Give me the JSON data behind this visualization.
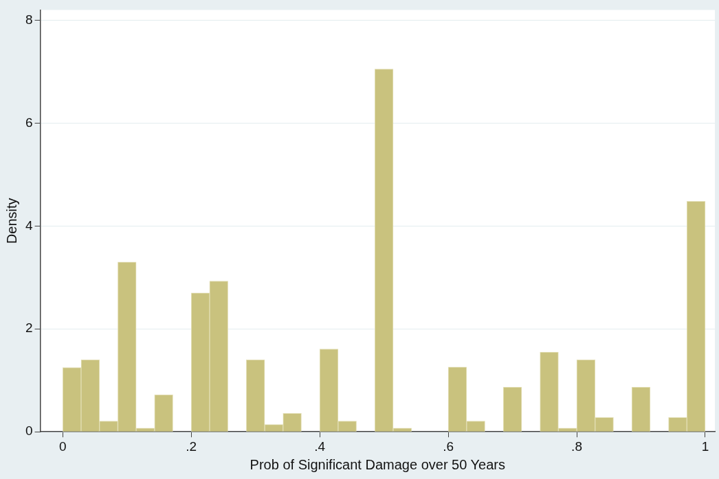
{
  "chart_data": {
    "type": "histogram",
    "xlabel": "Prob of Significant Damage over 50 Years",
    "ylabel": "Density",
    "bins": [
      0,
      0.0286,
      0.0571,
      0.0857,
      0.1143,
      0.1429,
      0.1714,
      0.2,
      0.2286,
      0.2571,
      0.2857,
      0.3143,
      0.3429,
      0.3714,
      0.4,
      0.4286,
      0.4571,
      0.4857,
      0.5143,
      0.5429,
      0.5714,
      0.6,
      0.6286,
      0.6571,
      0.6857,
      0.7143,
      0.7429,
      0.7714,
      0.8,
      0.8286,
      0.8571,
      0.8857,
      0.9143,
      0.9429,
      0.9714,
      1
    ],
    "values": [
      1.25,
      1.4,
      0.21,
      3.3,
      0.07,
      0.72,
      0,
      2.7,
      2.93,
      0,
      1.4,
      0.14,
      0.36,
      0,
      1.61,
      0.21,
      0,
      7.05,
      0.07,
      0,
      0,
      1.26,
      0.21,
      0,
      0.87,
      0,
      1.55,
      0.07,
      1.4,
      0.28,
      0,
      0.87,
      0,
      0.28,
      4.48
    ],
    "color": "#c9c27e",
    "xlim": [
      -0.035,
      1.015
    ],
    "xticks": [
      {
        "value": 0,
        "label": "0"
      },
      {
        "value": 0.2,
        "label": ".2"
      },
      {
        "value": 0.4,
        "label": ".4"
      },
      {
        "value": 0.6,
        "label": ".6"
      },
      {
        "value": 0.8,
        "label": ".8"
      },
      {
        "value": 1,
        "label": "1"
      }
    ],
    "ylim": [
      0,
      8.2
    ],
    "yticks": [
      0,
      2,
      4,
      6,
      8
    ],
    "grid": "y"
  }
}
